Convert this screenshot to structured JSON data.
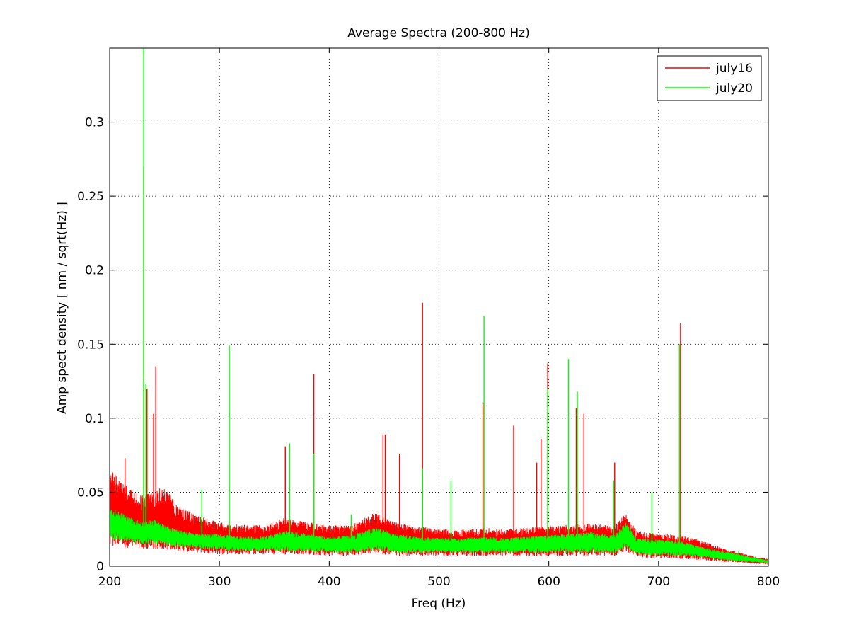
{
  "chart_data": {
    "type": "line",
    "title": "Average Spectra (200-800 Hz)",
    "xlabel": "Freq (Hz)",
    "ylabel": "Amp spect density [ nm / sqrt(Hz) ]",
    "xlim": [
      200,
      800
    ],
    "ylim": [
      0,
      0.35
    ],
    "xticks": [
      200,
      300,
      400,
      500,
      600,
      700,
      800
    ],
    "xtick_labels": [
      "200",
      "300",
      "400",
      "500",
      "600",
      "700",
      "800"
    ],
    "yticks": [
      0,
      0.05,
      0.1,
      0.15,
      0.2,
      0.25,
      0.3
    ],
    "ytick_labels": [
      "0",
      "0.05",
      "0.1",
      "0.15",
      "0.2",
      "0.25",
      "0.3"
    ],
    "grid": true,
    "legend_position": "top-right",
    "series": [
      {
        "name": "july16",
        "color": "#ff0000",
        "band": {
          "x": [
            200,
            210,
            220,
            230,
            240,
            250,
            260,
            280,
            300,
            320,
            340,
            360,
            380,
            400,
            420,
            440,
            450,
            460,
            480,
            500,
            520,
            540,
            560,
            580,
            600,
            620,
            640,
            660,
            670,
            680,
            700,
            720,
            740,
            760,
            780,
            800
          ],
          "high": [
            0.066,
            0.058,
            0.052,
            0.048,
            0.05,
            0.055,
            0.042,
            0.034,
            0.03,
            0.028,
            0.028,
            0.033,
            0.03,
            0.028,
            0.028,
            0.036,
            0.034,
            0.03,
            0.027,
            0.025,
            0.025,
            0.026,
            0.025,
            0.026,
            0.027,
            0.028,
            0.029,
            0.027,
            0.036,
            0.024,
            0.022,
            0.021,
            0.017,
            0.012,
            0.008,
            0.005
          ],
          "low": [
            0.014,
            0.013,
            0.012,
            0.012,
            0.012,
            0.011,
            0.01,
            0.009,
            0.008,
            0.008,
            0.008,
            0.008,
            0.008,
            0.007,
            0.007,
            0.008,
            0.008,
            0.007,
            0.007,
            0.007,
            0.007,
            0.007,
            0.007,
            0.007,
            0.007,
            0.007,
            0.007,
            0.007,
            0.01,
            0.006,
            0.005,
            0.005,
            0.004,
            0.003,
            0.002,
            0.001
          ]
        },
        "peaks": [
          {
            "x": 214,
            "y": 0.073
          },
          {
            "x": 231,
            "y": 0.27
          },
          {
            "x": 234,
            "y": 0.12
          },
          {
            "x": 240,
            "y": 0.103
          },
          {
            "x": 242,
            "y": 0.135
          },
          {
            "x": 360,
            "y": 0.081
          },
          {
            "x": 386,
            "y": 0.13
          },
          {
            "x": 449,
            "y": 0.089
          },
          {
            "x": 451,
            "y": 0.089
          },
          {
            "x": 464,
            "y": 0.076
          },
          {
            "x": 485,
            "y": 0.178
          },
          {
            "x": 540,
            "y": 0.11
          },
          {
            "x": 568,
            "y": 0.095
          },
          {
            "x": 589,
            "y": 0.07
          },
          {
            "x": 593,
            "y": 0.086
          },
          {
            "x": 599,
            "y": 0.137
          },
          {
            "x": 625,
            "y": 0.107
          },
          {
            "x": 632,
            "y": 0.103
          },
          {
            "x": 660,
            "y": 0.07
          },
          {
            "x": 720,
            "y": 0.164
          }
        ]
      },
      {
        "name": "july20",
        "color": "#00ff00",
        "band": {
          "x": [
            200,
            210,
            220,
            230,
            240,
            250,
            260,
            280,
            300,
            320,
            340,
            360,
            380,
            400,
            420,
            440,
            450,
            460,
            480,
            500,
            520,
            540,
            560,
            580,
            600,
            620,
            640,
            660,
            670,
            680,
            700,
            720,
            740,
            760,
            780,
            800
          ],
          "high": [
            0.04,
            0.036,
            0.033,
            0.03,
            0.032,
            0.028,
            0.025,
            0.022,
            0.022,
            0.02,
            0.02,
            0.024,
            0.022,
            0.02,
            0.021,
            0.026,
            0.025,
            0.022,
            0.02,
            0.019,
            0.019,
            0.02,
            0.019,
            0.02,
            0.021,
            0.022,
            0.023,
            0.021,
            0.03,
            0.019,
            0.018,
            0.017,
            0.013,
            0.01,
            0.007,
            0.004
          ],
          "low": [
            0.018,
            0.017,
            0.016,
            0.015,
            0.015,
            0.014,
            0.013,
            0.012,
            0.011,
            0.01,
            0.01,
            0.01,
            0.01,
            0.009,
            0.009,
            0.01,
            0.01,
            0.009,
            0.009,
            0.009,
            0.009,
            0.009,
            0.009,
            0.009,
            0.009,
            0.009,
            0.009,
            0.009,
            0.012,
            0.008,
            0.007,
            0.007,
            0.006,
            0.004,
            0.003,
            0.002
          ]
        },
        "peaks": [
          {
            "x": 231,
            "y": 0.35
          },
          {
            "x": 233,
            "y": 0.123
          },
          {
            "x": 284,
            "y": 0.052
          },
          {
            "x": 309,
            "y": 0.149
          },
          {
            "x": 364,
            "y": 0.083
          },
          {
            "x": 386,
            "y": 0.076
          },
          {
            "x": 420,
            "y": 0.035
          },
          {
            "x": 485,
            "y": 0.066
          },
          {
            "x": 511,
            "y": 0.058
          },
          {
            "x": 541,
            "y": 0.169
          },
          {
            "x": 599,
            "y": 0.12
          },
          {
            "x": 618,
            "y": 0.14
          },
          {
            "x": 626,
            "y": 0.118
          },
          {
            "x": 659,
            "y": 0.058
          },
          {
            "x": 694,
            "y": 0.05
          },
          {
            "x": 719,
            "y": 0.15
          },
          {
            "x": 773,
            "y": 0.01
          }
        ]
      }
    ]
  }
}
